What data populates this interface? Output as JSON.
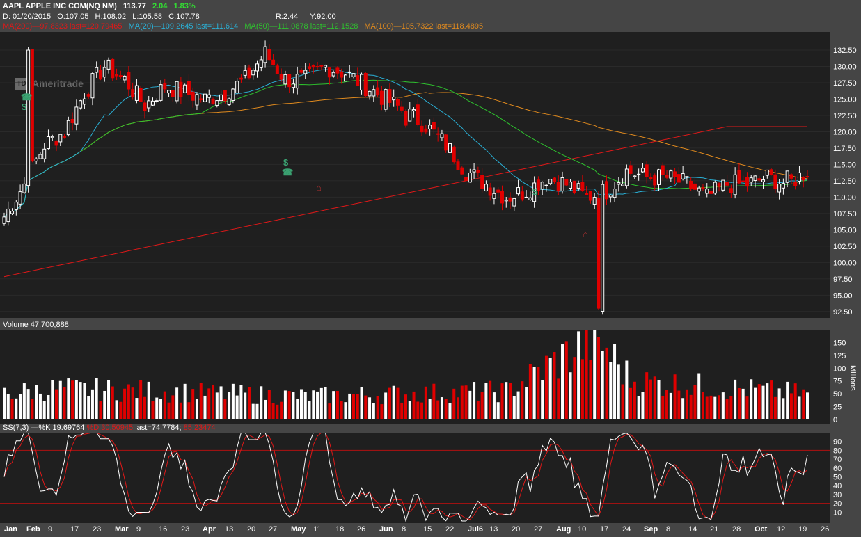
{
  "header": {
    "symbol": "AAPL APPLE INC COM(NQ NM)",
    "last": "113.77",
    "change": "2.04",
    "pct": "1.83%",
    "date": "D: 01/20/2015",
    "open": "O:107.05",
    "high": "H:108.02",
    "low": "L:105.58",
    "close": "C:107.78",
    "r": "R:2.44",
    "y": "Y:92.00"
  },
  "ma_legend": [
    {
      "name": "MA(200)",
      "text": "—97.8323 last=120.79465",
      "color": "#e01818"
    },
    {
      "name": "MA(20)",
      "text": "—109.2645 last=111.614",
      "color": "#2ab0d6"
    },
    {
      "name": "MA(50)",
      "text": "—111.0878 last=112.1528",
      "color": "#2ec32e"
    },
    {
      "name": "MA(100)",
      "text": "—105.7322 last=118.4895",
      "color": "#e08a1e"
    }
  ],
  "watermark": {
    "logo": "TD",
    "text": "Ameritrade"
  },
  "events": {
    "dividend": "$",
    "phone": "☎",
    "earnings": "⌂"
  },
  "volume_label": "Volume 47,700,888",
  "stoch_label": {
    "name": "SS(7,3)",
    "k": "—%K 19.69764",
    "d": "%D 30.50945",
    "last": "last=74.7784;",
    "other": "85.23474"
  },
  "price_axis": {
    "ticks": [
      "132.50",
      "130.00",
      "127.50",
      "125.00",
      "122.50",
      "120.00",
      "117.50",
      "115.00",
      "112.50",
      "110.00",
      "107.50",
      "105.00",
      "102.50",
      "100.00",
      "97.50",
      "95.00",
      "92.50"
    ]
  },
  "volume_axis": {
    "ticks": [
      "150",
      "125",
      "100",
      "75",
      "50",
      "25",
      "0"
    ],
    "unit": "Millions"
  },
  "stoch_axis": {
    "ticks": [
      "90",
      "80",
      "70",
      "60",
      "50",
      "40",
      "30",
      "20",
      "10"
    ]
  },
  "x_axis": {
    "labels": [
      {
        "t": "Jan",
        "m": true
      },
      {
        "t": "Feb",
        "m": true
      },
      {
        "t": "9",
        "m": false
      },
      {
        "t": "17",
        "m": false
      },
      {
        "t": "23",
        "m": false
      },
      {
        "t": "Mar",
        "m": true
      },
      {
        "t": "9",
        "m": false
      },
      {
        "t": "16",
        "m": false
      },
      {
        "t": "23",
        "m": false
      },
      {
        "t": "Apr",
        "m": true
      },
      {
        "t": "13",
        "m": false
      },
      {
        "t": "20",
        "m": false
      },
      {
        "t": "27",
        "m": false
      },
      {
        "t": "May",
        "m": true
      },
      {
        "t": "11",
        "m": false
      },
      {
        "t": "18",
        "m": false
      },
      {
        "t": "26",
        "m": false
      },
      {
        "t": "Jun",
        "m": true
      },
      {
        "t": "8",
        "m": false
      },
      {
        "t": "15",
        "m": false
      },
      {
        "t": "22",
        "m": false
      },
      {
        "t": "Jul6",
        "m": true
      },
      {
        "t": "13",
        "m": false
      },
      {
        "t": "20",
        "m": false
      },
      {
        "t": "27",
        "m": false
      },
      {
        "t": "Aug",
        "m": true
      },
      {
        "t": "10",
        "m": false
      },
      {
        "t": "17",
        "m": false
      },
      {
        "t": "24",
        "m": false
      },
      {
        "t": "Sep",
        "m": true
      },
      {
        "t": "8",
        "m": false
      },
      {
        "t": "14",
        "m": false
      },
      {
        "t": "21",
        "m": false
      },
      {
        "t": "28",
        "m": false
      },
      {
        "t": "Oct",
        "m": true
      },
      {
        "t": "12",
        "m": false
      },
      {
        "t": "19",
        "m": false
      },
      {
        "t": "26",
        "m": false
      }
    ]
  },
  "chart_data": {
    "type": "candlestick",
    "symbol": "AAPL",
    "interval": "daily",
    "period": "Jan 2015 – Oct 2015",
    "ylim": [
      91.5,
      134
    ],
    "close_path": [
      [
        0,
        107
      ],
      [
        4,
        112
      ],
      [
        8,
        118
      ],
      [
        12,
        120
      ],
      [
        16,
        126
      ],
      [
        20,
        130
      ],
      [
        24,
        128
      ],
      [
        28,
        124
      ],
      [
        32,
        127
      ],
      [
        36,
        126
      ],
      [
        40,
        125
      ],
      [
        44,
        126
      ],
      [
        48,
        128
      ],
      [
        52,
        132
      ],
      [
        56,
        128
      ],
      [
        60,
        128
      ],
      [
        64,
        130
      ],
      [
        68,
        129
      ],
      [
        72,
        127
      ],
      [
        76,
        125
      ],
      [
        80,
        123
      ],
      [
        84,
        121
      ],
      [
        88,
        118
      ],
      [
        92,
        114
      ],
      [
        96,
        112
      ],
      [
        100,
        110
      ],
      [
        104,
        111
      ],
      [
        108,
        113
      ],
      [
        112,
        112
      ],
      [
        116,
        110
      ],
      [
        120,
        111
      ],
      [
        124,
        114
      ],
      [
        128,
        113
      ],
      [
        132,
        113
      ],
      [
        136,
        112
      ],
      [
        140,
        110
      ],
      [
        144,
        112
      ],
      [
        148,
        112
      ],
      [
        152,
        113
      ],
      [
        156,
        112
      ],
      [
        160,
        114
      ]
    ],
    "highlight_days": [
      {
        "day": 5,
        "value": 132.5
      },
      {
        "day": 80,
        "value": 121
      },
      {
        "day": 118,
        "value": 93
      },
      {
        "day": 156,
        "value": 114
      }
    ],
    "ma_last": {
      "MA(20)": 111.614,
      "MA(50)": 112.1528,
      "MA(100)": 118.4895,
      "MA(200)": 120.79465
    },
    "volume_path": [
      [
        0,
        50
      ],
      [
        10,
        60
      ],
      [
        30,
        55
      ],
      [
        60,
        45
      ],
      [
        100,
        55
      ],
      [
        118,
        160
      ],
      [
        125,
        75
      ],
      [
        160,
        50
      ]
    ],
    "stochastic_last": {
      "k": 74.7784,
      "d": 85.23474
    },
    "stochastic_levels": [
      20,
      80
    ]
  },
  "colors": {
    "up": "#ffffff",
    "down": "#e00000",
    "ma20": "#2ab0d6",
    "ma50": "#2ec32e",
    "ma100": "#e08a1e",
    "ma200": "#e01818",
    "panel": "#1f1f1f",
    "bg": "#454545"
  }
}
